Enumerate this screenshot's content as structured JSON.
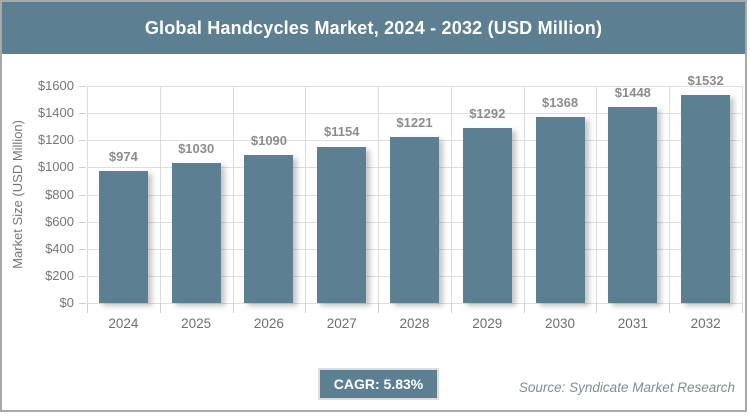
{
  "header": {
    "title": "Global Handcycles Market, 2024 - 2032 (USD Million)"
  },
  "chart_data": {
    "type": "bar",
    "title": "Global Handcycles Market, 2024 - 2032 (USD Million)",
    "categories": [
      "2024",
      "2025",
      "2026",
      "2027",
      "2028",
      "2029",
      "2030",
      "2031",
      "2032"
    ],
    "values": [
      974,
      1030,
      1090,
      1154,
      1221,
      1292,
      1368,
      1448,
      1532
    ],
    "value_labels": [
      "$974",
      "$1030",
      "$1090",
      "$1154",
      "$1221",
      "$1292",
      "$1368",
      "$1448",
      "$1532"
    ],
    "xlabel": "",
    "ylabel": "Market Size (USD Million)",
    "ylim": [
      0,
      1600
    ],
    "ytick_step": 200,
    "ytick_labels": [
      "$0",
      "$200",
      "$400",
      "$600",
      "$800",
      "$1000",
      "$1200",
      "$1400",
      "$1600"
    ],
    "grid": true,
    "legend": false
  },
  "footer": {
    "cagr_label": "CAGR: 5.83%",
    "source": "Source: Syndicate Market Research"
  },
  "colors": {
    "accent": "#5c7f92",
    "header_bg": "#5c7f92",
    "bar": "#5c7f92",
    "panel_border": "#a9a9a9",
    "gridline": "#dcdcdc",
    "axis_text": "#757575",
    "value_label_text": "#8c8c8c",
    "badge_text": "#ffffff",
    "source_text": "#7d8d97"
  }
}
